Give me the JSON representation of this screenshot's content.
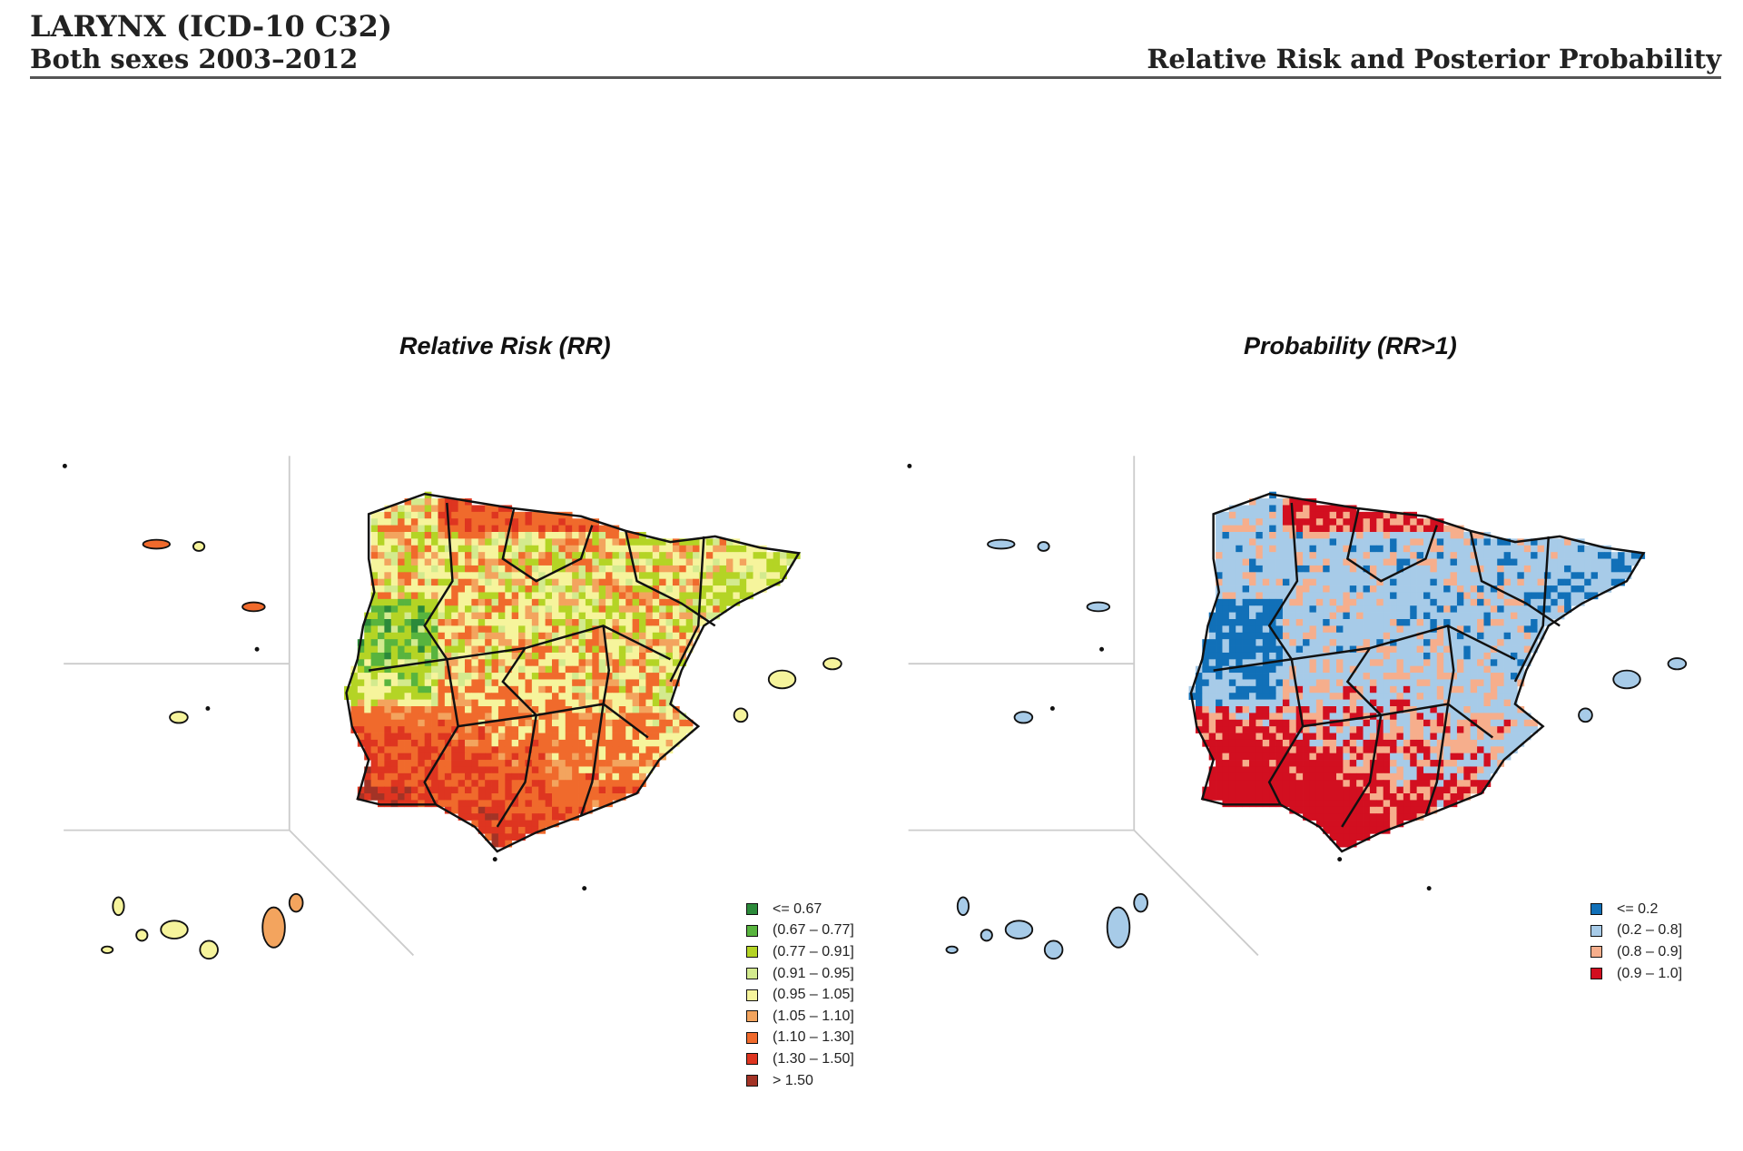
{
  "header": {
    "title": "LARYNX (ICD-10 C32)",
    "subtitle": "Both sexes 2003–2012",
    "right_title": "Relative Risk and Posterior Probability"
  },
  "panels": [
    {
      "title": "Relative Risk (RR)",
      "legend": [
        {
          "label": "<=  0.67",
          "color": "#2b8a3a"
        },
        {
          "label": "(0.67 – 0.77]",
          "color": "#58b43e"
        },
        {
          "label": "(0.77 – 0.91]",
          "color": "#b4d425"
        },
        {
          "label": "(0.91 – 0.95]",
          "color": "#d3ea8e"
        },
        {
          "label": "(0.95 – 1.05]",
          "color": "#f6f49c"
        },
        {
          "label": "(1.05 – 1.10]",
          "color": "#f3a45e"
        },
        {
          "label": "(1.10 – 1.30]",
          "color": "#f06a2c"
        },
        {
          "label": "(1.30 – 1.50]",
          "color": "#de3520"
        },
        {
          "label": "> 1.50",
          "color": "#a33326"
        }
      ]
    },
    {
      "title": "Probability (RR>1)",
      "legend": [
        {
          "label": "<= 0.2",
          "color": "#1170b8"
        },
        {
          "label": "(0.2 – 0.8]",
          "color": "#a7cbe8"
        },
        {
          "label": "(0.8 – 0.9]",
          "color": "#f6ae8c"
        },
        {
          "label": "(0.9 – 1.0]",
          "color": "#d20f20"
        }
      ]
    }
  ]
}
